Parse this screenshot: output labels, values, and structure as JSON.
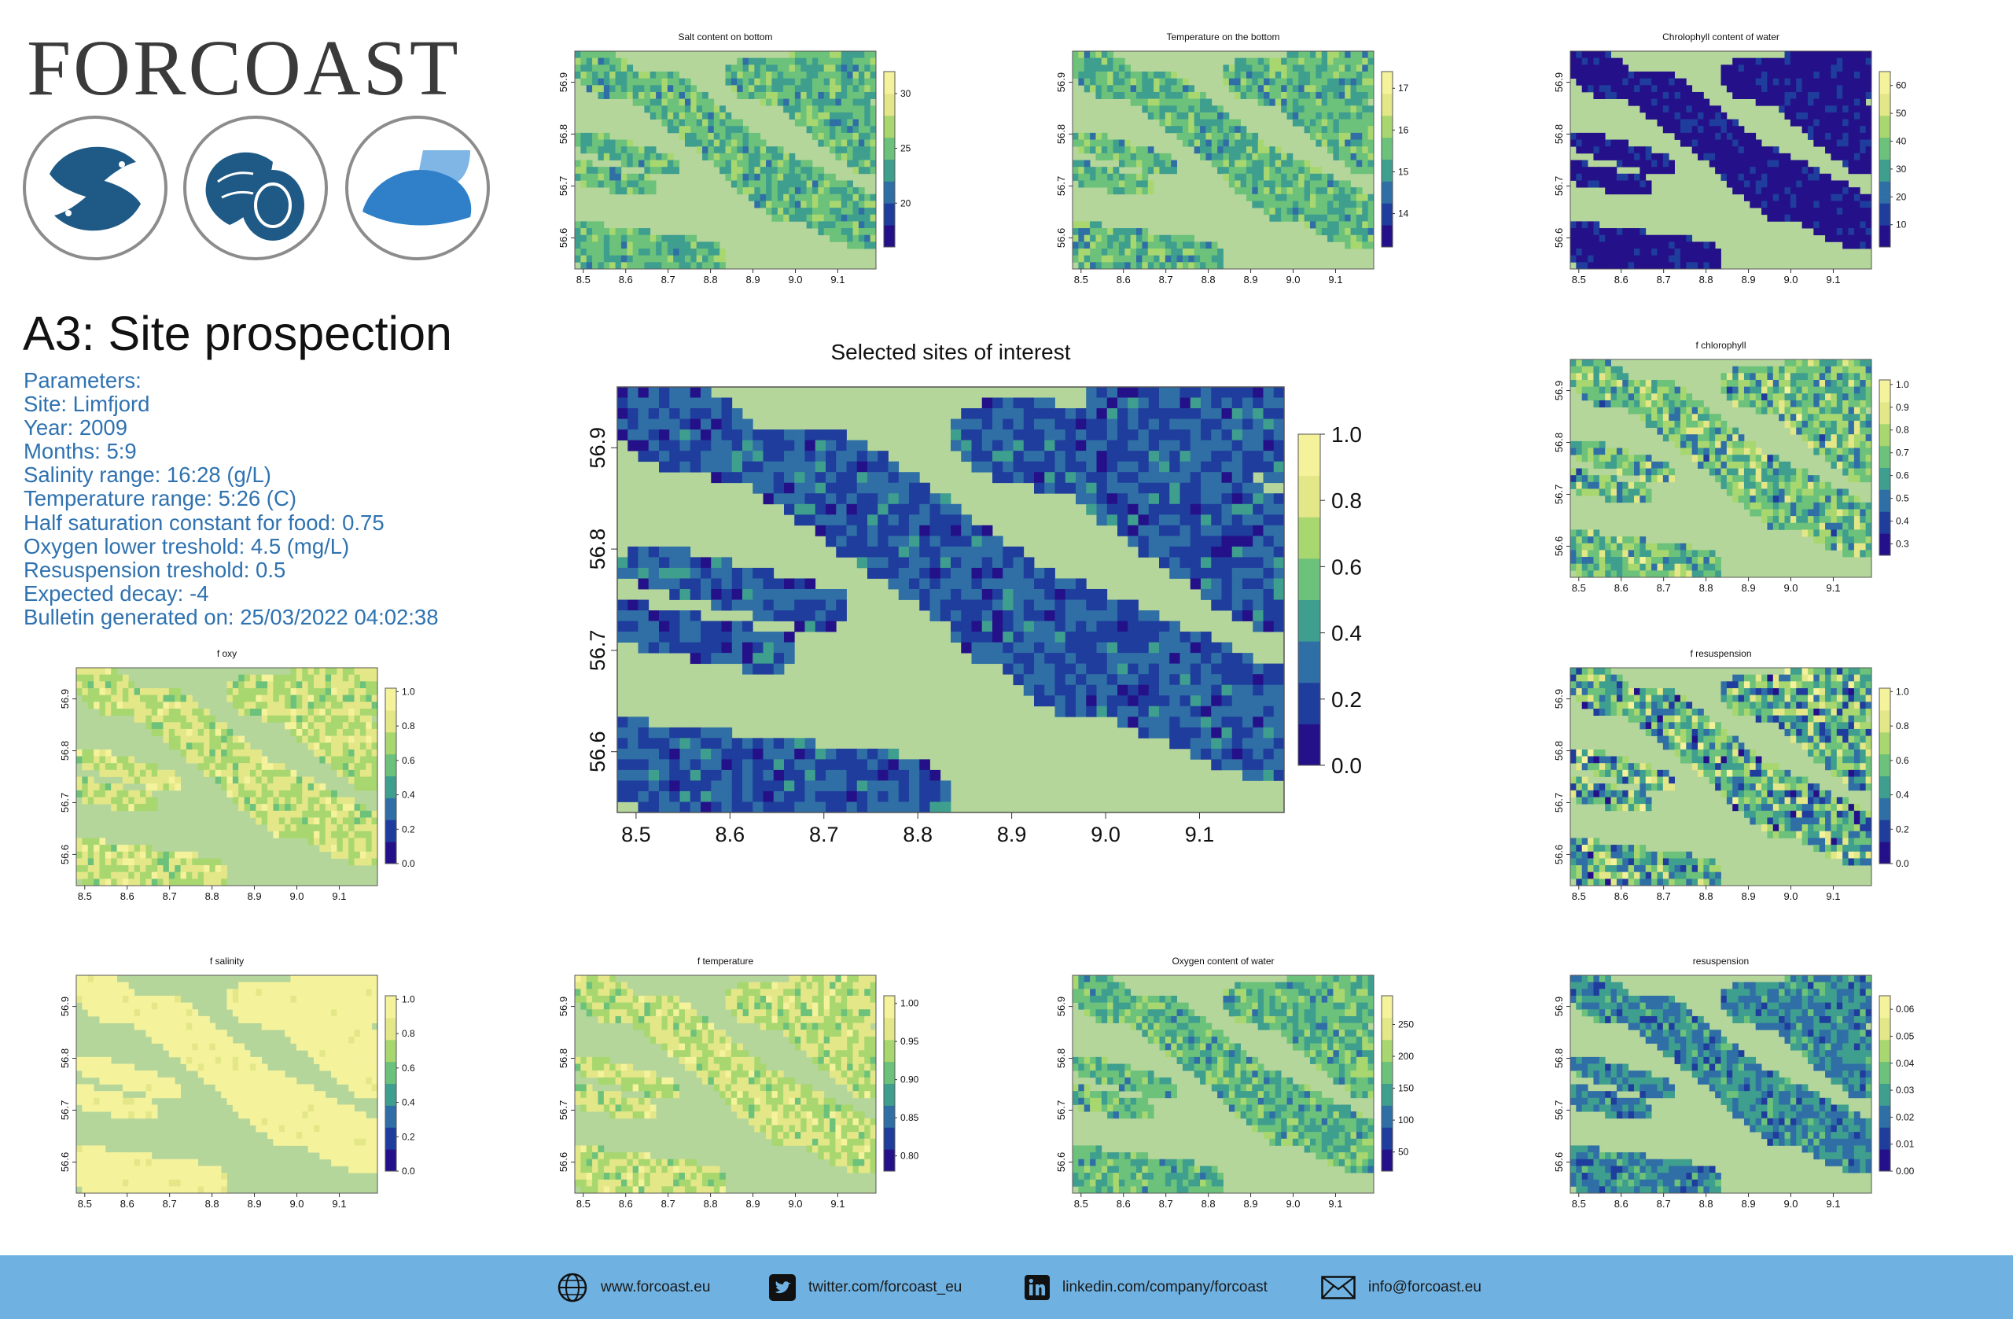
{
  "header": {
    "logo_text": "FORCOAST",
    "icons": [
      "fish-icon",
      "oyster-icon",
      "clam-icon"
    ]
  },
  "title": "A3: Site prospection",
  "parameters": [
    "Parameters:",
    "Site: Limfjord",
    "Year: 2009",
    "Months: 5:9",
    "Salinity range: 16:28 (g/L)",
    "Temperature range: 5:26 (C)",
    "Half saturation constant for food: 0.75",
    "Oxygen lower treshold: 4.5 (mg/L)",
    "Resuspension treshold: 0.5",
    "Expected decay: -4",
    "Bulletin generated on: 25/03/2022 04:02:38"
  ],
  "colors": {
    "land": "#b5d69b",
    "palette": [
      "#24118a",
      "#1f3d9c",
      "#2f6fa6",
      "#3f9f8e",
      "#6cc27a",
      "#a8d770",
      "#e4e787",
      "#f5f29c"
    ],
    "footer": "#6fb1e1",
    "params_text": "#2f72b0"
  },
  "chart_data": [
    {
      "id": "main",
      "type": "heatmap",
      "title": "Selected sites of interest",
      "x_ticks": [
        "8.5",
        "8.6",
        "8.7",
        "8.8",
        "8.9",
        "9.0",
        "9.1"
      ],
      "y_ticks": [
        "56.6",
        "56.7",
        "56.8",
        "56.9"
      ],
      "xlim": [
        8.48,
        9.19
      ],
      "ylim": [
        56.54,
        56.96
      ],
      "colorbar_ticks": [
        "0.0",
        "0.2",
        "0.4",
        "0.6",
        "0.8",
        "1.0"
      ],
      "colorbar_range": [
        0,
        1
      ],
      "pattern": "low"
    },
    {
      "id": "salt",
      "type": "heatmap",
      "title": "Salt content on bottom",
      "x_ticks": [
        "8.5",
        "8.6",
        "8.7",
        "8.8",
        "8.9",
        "9.0",
        "9.1"
      ],
      "y_ticks": [
        "56.6",
        "56.7",
        "56.8",
        "56.9"
      ],
      "xlim": [
        8.48,
        9.19
      ],
      "ylim": [
        56.54,
        56.96
      ],
      "colorbar_ticks": [
        "20",
        "25",
        "30"
      ],
      "colorbar_range": [
        16,
        32
      ],
      "pattern": "mid"
    },
    {
      "id": "temp",
      "type": "heatmap",
      "title": "Temperature on the bottom",
      "x_ticks": [
        "8.5",
        "8.6",
        "8.7",
        "8.8",
        "8.9",
        "9.0",
        "9.1"
      ],
      "y_ticks": [
        "56.6",
        "56.7",
        "56.8",
        "56.9"
      ],
      "xlim": [
        8.48,
        9.19
      ],
      "ylim": [
        56.54,
        56.96
      ],
      "colorbar_ticks": [
        "14",
        "15",
        "16",
        "17"
      ],
      "colorbar_range": [
        13.2,
        17.4
      ],
      "pattern": "mid"
    },
    {
      "id": "chl",
      "type": "heatmap",
      "title": "Chrolophyll content of water",
      "x_ticks": [
        "8.5",
        "8.6",
        "8.7",
        "8.8",
        "8.9",
        "9.0",
        "9.1"
      ],
      "y_ticks": [
        "56.6",
        "56.7",
        "56.8",
        "56.9"
      ],
      "xlim": [
        8.48,
        9.19
      ],
      "ylim": [
        56.54,
        56.96
      ],
      "colorbar_ticks": [
        "10",
        "20",
        "30",
        "40",
        "50",
        "60"
      ],
      "colorbar_range": [
        2,
        65
      ],
      "pattern": "verylow"
    },
    {
      "id": "fchl",
      "type": "heatmap",
      "title": "f chlorophyll",
      "x_ticks": [
        "8.5",
        "8.6",
        "8.7",
        "8.8",
        "8.9",
        "9.0",
        "9.1"
      ],
      "y_ticks": [
        "56.6",
        "56.7",
        "56.8",
        "56.9"
      ],
      "xlim": [
        8.48,
        9.19
      ],
      "ylim": [
        56.54,
        56.96
      ],
      "colorbar_ticks": [
        "0.3",
        "0.4",
        "0.5",
        "0.6",
        "0.7",
        "0.8",
        "0.9",
        "1.0"
      ],
      "colorbar_range": [
        0.25,
        1.02
      ],
      "pattern": "mixed"
    },
    {
      "id": "foxy",
      "type": "heatmap",
      "title": "f oxy",
      "x_ticks": [
        "8.5",
        "8.6",
        "8.7",
        "8.8",
        "8.9",
        "9.0",
        "9.1"
      ],
      "y_ticks": [
        "56.6",
        "56.7",
        "56.8",
        "56.9"
      ],
      "xlim": [
        8.48,
        9.19
      ],
      "ylim": [
        56.54,
        56.96
      ],
      "colorbar_ticks": [
        "0.0",
        "0.2",
        "0.4",
        "0.6",
        "0.8",
        "1.0"
      ],
      "colorbar_range": [
        0,
        1.02
      ],
      "pattern": "high"
    },
    {
      "id": "fres",
      "type": "heatmap",
      "title": "f resuspension",
      "x_ticks": [
        "8.5",
        "8.6",
        "8.7",
        "8.8",
        "8.9",
        "9.0",
        "9.1"
      ],
      "y_ticks": [
        "56.6",
        "56.7",
        "56.8",
        "56.9"
      ],
      "xlim": [
        8.48,
        9.19
      ],
      "ylim": [
        56.54,
        56.96
      ],
      "colorbar_ticks": [
        "0.0",
        "0.2",
        "0.4",
        "0.6",
        "0.8",
        "1.0"
      ],
      "colorbar_range": [
        0,
        1.02
      ],
      "pattern": "bimodal"
    },
    {
      "id": "fsal",
      "type": "heatmap",
      "title": "f salinity",
      "x_ticks": [
        "8.5",
        "8.6",
        "8.7",
        "8.8",
        "8.9",
        "9.0",
        "9.1"
      ],
      "y_ticks": [
        "56.6",
        "56.7",
        "56.8",
        "56.9"
      ],
      "xlim": [
        8.48,
        9.19
      ],
      "ylim": [
        56.54,
        56.96
      ],
      "colorbar_ticks": [
        "0.0",
        "0.2",
        "0.4",
        "0.6",
        "0.8",
        "1.0"
      ],
      "colorbar_range": [
        0,
        1.02
      ],
      "pattern": "veryhigh"
    },
    {
      "id": "ftemp",
      "type": "heatmap",
      "title": "f temperature",
      "x_ticks": [
        "8.5",
        "8.6",
        "8.7",
        "8.8",
        "8.9",
        "9.0",
        "9.1"
      ],
      "y_ticks": [
        "56.6",
        "56.7",
        "56.8",
        "56.9"
      ],
      "xlim": [
        8.48,
        9.19
      ],
      "ylim": [
        56.54,
        56.96
      ],
      "colorbar_ticks": [
        "0.80",
        "0.85",
        "0.90",
        "0.95",
        "1.00"
      ],
      "colorbar_range": [
        0.78,
        1.01
      ],
      "pattern": "high"
    },
    {
      "id": "oxy",
      "type": "heatmap",
      "title": "Oxygen content of water",
      "x_ticks": [
        "8.5",
        "8.6",
        "8.7",
        "8.8",
        "8.9",
        "9.0",
        "9.1"
      ],
      "y_ticks": [
        "56.6",
        "56.7",
        "56.8",
        "56.9"
      ],
      "xlim": [
        8.48,
        9.19
      ],
      "ylim": [
        56.54,
        56.96
      ],
      "colorbar_ticks": [
        "50",
        "100",
        "150",
        "200",
        "250"
      ],
      "colorbar_range": [
        20,
        295
      ],
      "pattern": "mid"
    },
    {
      "id": "resus",
      "type": "heatmap",
      "title": "resuspension",
      "x_ticks": [
        "8.5",
        "8.6",
        "8.7",
        "8.8",
        "8.9",
        "9.0",
        "9.1"
      ],
      "y_ticks": [
        "56.6",
        "56.7",
        "56.8",
        "56.9"
      ],
      "xlim": [
        8.48,
        9.19
      ],
      "ylim": [
        56.54,
        56.96
      ],
      "colorbar_ticks": [
        "0.00",
        "0.01",
        "0.02",
        "0.03",
        "0.04",
        "0.05",
        "0.06"
      ],
      "colorbar_range": [
        0,
        0.065
      ],
      "pattern": "lowmid"
    }
  ],
  "footer": {
    "website": "www.forcoast.eu",
    "twitter": "twitter.com/forcoast_eu",
    "linkedin": "linkedin.com/company/forcoast",
    "email": "info@forcoast.eu"
  }
}
